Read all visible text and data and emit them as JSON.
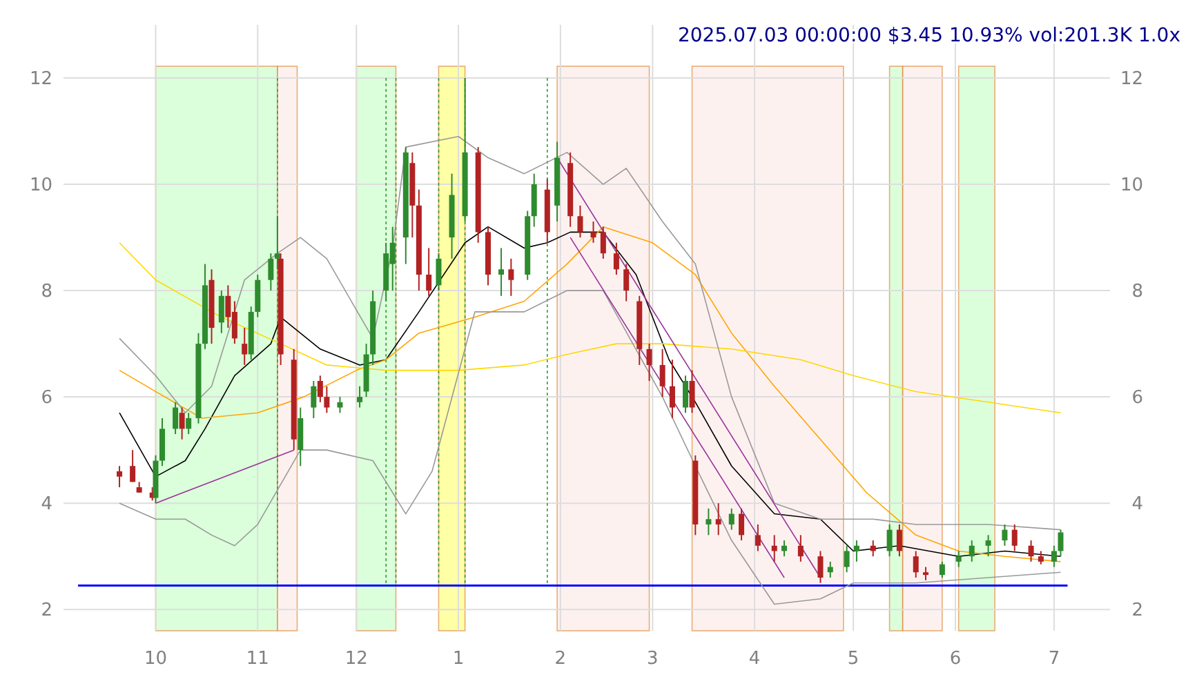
{
  "chart_data": {
    "type": "candlestick",
    "title": "2025.07.03 00:00:00 $3.45 10.93% vol:201.3K 1.0x",
    "x": [
      "2024-09-20",
      "2024-09-24",
      "2024-09-26",
      "2024-09-30",
      "2024-10-01",
      "2024-10-03",
      "2024-10-07",
      "2024-10-09",
      "2024-10-11",
      "2024-10-14",
      "2024-10-16",
      "2024-10-18",
      "2024-10-21",
      "2024-10-23",
      "2024-10-25",
      "2024-10-28",
      "2024-10-30",
      "2024-11-01",
      "2024-11-05",
      "2024-11-07",
      "2024-11-08",
      "2024-11-12",
      "2024-11-14",
      "2024-11-18",
      "2024-11-20",
      "2024-11-22",
      "2024-11-26",
      "2024-12-02",
      "2024-12-04",
      "2024-12-06",
      "2024-12-10",
      "2024-12-12",
      "2024-12-16",
      "2024-12-18",
      "2024-12-20",
      "2024-12-23",
      "2024-12-26",
      "2024-12-30",
      "2025-01-03",
      "2025-01-07",
      "2025-01-10",
      "2025-01-14",
      "2025-01-17",
      "2025-01-22",
      "2025-01-24",
      "2025-01-28",
      "2025-01-31",
      "2025-02-04",
      "2025-02-07",
      "2025-02-11",
      "2025-02-14",
      "2025-02-18",
      "2025-02-21",
      "2025-02-25",
      "2025-02-28",
      "2025-03-04",
      "2025-03-07",
      "2025-03-11",
      "2025-03-13",
      "2025-03-14",
      "2025-03-18",
      "2025-03-21",
      "2025-03-25",
      "2025-03-28",
      "2025-04-02",
      "2025-04-07",
      "2025-04-10",
      "2025-04-15",
      "2025-04-21",
      "2025-04-24",
      "2025-04-29",
      "2025-05-02",
      "2025-05-07",
      "2025-05-12",
      "2025-05-15",
      "2025-05-20",
      "2025-05-23",
      "2025-05-28",
      "2025-06-02",
      "2025-06-06",
      "2025-06-11",
      "2025-06-16",
      "2025-06-19",
      "2025-06-24",
      "2025-06-27",
      "2025-07-01",
      "2025-07-03"
    ],
    "ohlc": [
      [
        4.6,
        4.7,
        4.3,
        4.5
      ],
      [
        4.7,
        5.0,
        4.4,
        4.4
      ],
      [
        4.3,
        4.4,
        4.2,
        4.2
      ],
      [
        4.2,
        4.3,
        4.05,
        4.1
      ],
      [
        4.1,
        4.9,
        4.0,
        4.8
      ],
      [
        4.8,
        5.6,
        4.7,
        5.4
      ],
      [
        5.4,
        5.9,
        5.3,
        5.8
      ],
      [
        5.7,
        5.8,
        5.2,
        5.4
      ],
      [
        5.4,
        5.7,
        5.3,
        5.6
      ],
      [
        5.6,
        7.2,
        5.5,
        7.0
      ],
      [
        7.0,
        8.5,
        6.9,
        8.1
      ],
      [
        8.2,
        8.4,
        7.0,
        7.3
      ],
      [
        7.4,
        8.0,
        7.2,
        7.9
      ],
      [
        7.9,
        8.1,
        7.3,
        7.5
      ],
      [
        7.6,
        7.8,
        7.0,
        7.1
      ],
      [
        7.0,
        7.3,
        6.6,
        6.8
      ],
      [
        6.8,
        7.7,
        6.7,
        7.6
      ],
      [
        7.6,
        8.3,
        7.5,
        8.2
      ],
      [
        8.2,
        8.7,
        8.0,
        8.6
      ],
      [
        8.6,
        9.4,
        8.4,
        8.7
      ],
      [
        8.6,
        8.7,
        6.6,
        6.8
      ],
      [
        6.7,
        6.9,
        5.0,
        5.2
      ],
      [
        5.0,
        5.8,
        4.7,
        5.6
      ],
      [
        5.8,
        6.3,
        5.6,
        6.2
      ],
      [
        6.3,
        6.4,
        5.9,
        6.0
      ],
      [
        6.0,
        6.2,
        5.7,
        5.8
      ],
      [
        5.8,
        6.0,
        5.7,
        5.9
      ],
      [
        5.9,
        6.2,
        5.8,
        6.0
      ],
      [
        6.1,
        7.0,
        6.0,
        6.8
      ],
      [
        6.8,
        8.0,
        6.6,
        7.8
      ],
      [
        8.0,
        8.9,
        7.8,
        8.7
      ],
      [
        8.5,
        9.2,
        8.0,
        8.9
      ],
      [
        9.0,
        10.7,
        8.5,
        10.6
      ],
      [
        10.4,
        10.6,
        9.0,
        9.6
      ],
      [
        9.6,
        9.9,
        8.0,
        8.3
      ],
      [
        8.3,
        8.8,
        7.9,
        8.0
      ],
      [
        8.1,
        8.7,
        8.0,
        8.6
      ],
      [
        9.0,
        10.2,
        8.6,
        9.8
      ],
      [
        9.4,
        12.0,
        9.3,
        10.6
      ],
      [
        10.6,
        10.7,
        8.9,
        9.1
      ],
      [
        9.1,
        9.2,
        8.1,
        8.3
      ],
      [
        8.3,
        8.8,
        7.9,
        8.4
      ],
      [
        8.4,
        8.6,
        7.9,
        8.2
      ],
      [
        8.3,
        9.5,
        8.2,
        9.4
      ],
      [
        9.4,
        10.2,
        9.2,
        10.0
      ],
      [
        9.9,
        10.1,
        8.9,
        9.1
      ],
      [
        9.6,
        10.8,
        9.3,
        10.5
      ],
      [
        10.4,
        10.6,
        9.2,
        9.4
      ],
      [
        9.4,
        9.6,
        9.0,
        9.1
      ],
      [
        9.1,
        9.3,
        8.9,
        9.0
      ],
      [
        9.1,
        9.2,
        8.6,
        8.7
      ],
      [
        8.7,
        8.9,
        8.3,
        8.4
      ],
      [
        8.4,
        8.5,
        7.8,
        8.0
      ],
      [
        7.8,
        7.9,
        6.6,
        6.9
      ],
      [
        6.9,
        7.0,
        6.3,
        6.6
      ],
      [
        6.6,
        6.9,
        6.0,
        6.2
      ],
      [
        6.2,
        6.7,
        5.6,
        5.8
      ],
      [
        5.8,
        6.4,
        5.7,
        6.3
      ],
      [
        6.3,
        6.5,
        5.7,
        5.8
      ],
      [
        4.8,
        4.9,
        3.4,
        3.6
      ],
      [
        3.6,
        3.9,
        3.4,
        3.7
      ],
      [
        3.7,
        4.0,
        3.4,
        3.6
      ],
      [
        3.6,
        3.9,
        3.5,
        3.8
      ],
      [
        3.8,
        3.9,
        3.3,
        3.4
      ],
      [
        3.4,
        3.6,
        3.1,
        3.2
      ],
      [
        3.2,
        3.4,
        2.9,
        3.1
      ],
      [
        3.1,
        3.3,
        3.0,
        3.2
      ],
      [
        3.2,
        3.4,
        2.9,
        3.0
      ],
      [
        3.0,
        3.1,
        2.5,
        2.6
      ],
      [
        2.7,
        2.9,
        2.6,
        2.8
      ],
      [
        2.8,
        3.2,
        2.7,
        3.1
      ],
      [
        3.1,
        3.3,
        2.9,
        3.2
      ],
      [
        3.2,
        3.3,
        3.0,
        3.1
      ],
      [
        3.1,
        3.6,
        3.0,
        3.5
      ],
      [
        3.5,
        3.6,
        3.0,
        3.1
      ],
      [
        3.0,
        3.1,
        2.6,
        2.7
      ],
      [
        2.7,
        2.8,
        2.55,
        2.65
      ],
      [
        2.65,
        2.9,
        2.6,
        2.85
      ],
      [
        2.9,
        3.1,
        2.8,
        3.0
      ],
      [
        3.0,
        3.3,
        2.9,
        3.2
      ],
      [
        3.2,
        3.4,
        3.0,
        3.3
      ],
      [
        3.3,
        3.6,
        3.2,
        3.5
      ],
      [
        3.5,
        3.6,
        3.1,
        3.2
      ],
      [
        3.2,
        3.3,
        2.9,
        3.0
      ],
      [
        3.0,
        3.1,
        2.85,
        2.9
      ],
      [
        2.9,
        3.2,
        2.8,
        3.1
      ],
      [
        3.1,
        3.5,
        3.0,
        3.45
      ]
    ],
    "series": [
      {
        "type": "line",
        "color": "#000000",
        "x": [
          "2024-09-20",
          "2024-10-01",
          "2024-10-10",
          "2024-10-16",
          "2024-10-25",
          "2024-11-05",
          "2024-11-08",
          "2024-11-20",
          "2024-12-02",
          "2024-12-10",
          "2024-12-20",
          "2025-01-03",
          "2025-01-10",
          "2025-01-21",
          "2025-01-28",
          "2025-02-04",
          "2025-02-14",
          "2025-02-24",
          "2025-03-06",
          "2025-03-14",
          "2025-03-25",
          "2025-04-07",
          "2025-04-21",
          "2025-05-01",
          "2025-05-15",
          "2025-06-02",
          "2025-06-16",
          "2025-07-03"
        ],
        "values": [
          5.7,
          4.5,
          4.8,
          5.4,
          6.4,
          7.0,
          7.5,
          6.9,
          6.6,
          6.7,
          7.6,
          8.9,
          9.2,
          8.8,
          8.9,
          9.1,
          9.1,
          8.3,
          6.7,
          5.9,
          4.7,
          3.8,
          3.7,
          3.1,
          3.2,
          3.0,
          3.1,
          3.0
        ]
      },
      {
        "type": "line",
        "color": "#ffa500",
        "x": [
          "2024-09-20",
          "2024-10-01",
          "2024-10-15",
          "2024-11-01",
          "2024-11-15",
          "2024-12-01",
          "2024-12-10",
          "2024-12-20",
          "2025-01-06",
          "2025-01-21",
          "2025-02-03",
          "2025-02-14",
          "2025-03-01",
          "2025-03-14",
          "2025-03-25",
          "2025-04-07",
          "2025-04-21",
          "2025-05-05",
          "2025-05-20",
          "2025-06-02",
          "2025-06-16",
          "2025-07-03"
        ],
        "values": [
          6.5,
          6.1,
          5.6,
          5.7,
          6.0,
          6.5,
          6.7,
          7.2,
          7.5,
          7.8,
          8.5,
          9.2,
          8.9,
          8.3,
          7.2,
          6.2,
          5.2,
          4.2,
          3.4,
          3.1,
          3.0,
          2.9
        ]
      },
      {
        "type": "line",
        "color": "#ffd700",
        "x": [
          "2024-09-20",
          "2024-10-01",
          "2024-10-21",
          "2024-11-08",
          "2024-11-22",
          "2024-12-10",
          "2025-01-01",
          "2025-01-21",
          "2025-02-03",
          "2025-02-18",
          "2025-03-04",
          "2025-03-25",
          "2025-04-15",
          "2025-05-01",
          "2025-05-20",
          "2025-06-11",
          "2025-07-03"
        ],
        "values": [
          8.9,
          8.2,
          7.5,
          7.0,
          6.6,
          6.5,
          6.5,
          6.6,
          6.8,
          7.0,
          7.0,
          6.9,
          6.7,
          6.4,
          6.1,
          5.9,
          5.7
        ]
      },
      {
        "type": "line",
        "color": "#999999",
        "x": [
          "2024-09-20",
          "2024-10-01",
          "2024-10-10",
          "2024-10-18",
          "2024-10-28",
          "2024-11-07",
          "2024-11-14",
          "2024-11-22",
          "2024-12-06",
          "2024-12-12",
          "2024-12-16",
          "2025-01-01",
          "2025-01-10",
          "2025-01-21",
          "2025-02-03",
          "2025-02-14",
          "2025-02-21",
          "2025-03-04",
          "2025-03-14",
          "2025-03-25",
          "2025-04-07",
          "2025-04-21",
          "2025-05-07",
          "2025-05-20",
          "2025-06-11",
          "2025-07-03"
        ],
        "values": [
          7.1,
          6.4,
          5.7,
          6.2,
          8.2,
          8.7,
          9.0,
          8.6,
          7.1,
          8.8,
          10.7,
          10.9,
          10.5,
          10.2,
          10.6,
          10.0,
          10.3,
          9.3,
          8.5,
          6.0,
          4.0,
          3.7,
          3.7,
          3.6,
          3.6,
          3.5
        ]
      },
      {
        "type": "line",
        "color": "#999999",
        "x": [
          "2024-09-20",
          "2024-10-01",
          "2024-10-10",
          "2024-10-18",
          "2024-10-25",
          "2024-11-01",
          "2024-11-14",
          "2024-11-22",
          "2024-12-06",
          "2024-12-16",
          "2024-12-24",
          "2025-01-06",
          "2025-01-21",
          "2025-02-03",
          "2025-02-14",
          "2025-03-04",
          "2025-03-14",
          "2025-03-25",
          "2025-04-07",
          "2025-04-21",
          "2025-05-01",
          "2025-05-20",
          "2025-06-11",
          "2025-07-03"
        ],
        "values": [
          4.0,
          3.7,
          3.7,
          3.4,
          3.2,
          3.6,
          5.0,
          5.0,
          4.8,
          3.8,
          4.6,
          7.6,
          7.6,
          8.0,
          8.0,
          6.0,
          4.7,
          3.3,
          2.1,
          2.2,
          2.5,
          2.5,
          2.6,
          2.7
        ]
      },
      {
        "type": "line",
        "color": "#993399",
        "x": [
          "2024-10-01",
          "2024-11-12"
        ],
        "values": [
          4.0,
          5.0
        ]
      },
      {
        "type": "line",
        "color": "#993399",
        "x": [
          "2025-01-31",
          "2025-04-21"
        ],
        "values": [
          10.5,
          2.6
        ]
      },
      {
        "type": "line",
        "color": "#993399",
        "x": [
          "2025-02-04",
          "2025-04-10"
        ],
        "values": [
          9.0,
          2.6
        ]
      }
    ],
    "bands": [
      {
        "axis": "x",
        "from": "2024-10-01",
        "to": "2024-11-07",
        "color": "#ccffcc"
      },
      {
        "axis": "x",
        "from": "2024-11-07",
        "to": "2024-11-13",
        "color": "#fdecea"
      },
      {
        "axis": "x",
        "from": "2024-12-01",
        "to": "2024-12-13",
        "color": "#ccffcc"
      },
      {
        "axis": "x",
        "from": "2024-12-26",
        "to": "2025-01-03",
        "color": "#ffff80"
      },
      {
        "axis": "x",
        "from": "2025-01-31",
        "to": "2025-02-28",
        "color": "#fdecea"
      },
      {
        "axis": "x",
        "from": "2025-03-13",
        "to": "2025-04-28",
        "color": "#fdecea"
      },
      {
        "axis": "x",
        "from": "2025-05-12",
        "to": "2025-05-16",
        "color": "#ccffcc"
      },
      {
        "axis": "x",
        "from": "2025-05-16",
        "to": "2025-05-28",
        "color": "#fdecea"
      },
      {
        "axis": "x",
        "from": "2025-06-02",
        "to": "2025-06-13",
        "color": "#ccffcc"
      }
    ],
    "ref_lines": [
      {
        "axis": "y",
        "value": 2.45,
        "color": "#0000ff",
        "line_style": "solid"
      },
      {
        "axis": "x",
        "value": "2024-11-07",
        "color": "#339933",
        "line_style": "dotted"
      },
      {
        "axis": "x",
        "value": "2024-12-10",
        "color": "#339933",
        "line_style": "dotted"
      },
      {
        "axis": "x",
        "value": "2024-12-13",
        "color": "#339933",
        "line_style": "dotted"
      },
      {
        "axis": "x",
        "value": "2024-12-26",
        "color": "#339933",
        "line_style": "dotted"
      },
      {
        "axis": "x",
        "value": "2025-01-03",
        "color": "#339933",
        "line_style": "dotted"
      },
      {
        "axis": "x",
        "value": "2025-01-28",
        "color": "#339933",
        "line_style": "dotted"
      }
    ],
    "xlim": [
      "2024-09-03",
      "2025-07-18"
    ],
    "xticks": [
      {
        "value": "2024-10-01",
        "label": "10"
      },
      {
        "value": "2024-11-01",
        "label": "11"
      },
      {
        "value": "2024-12-01",
        "label": "12"
      },
      {
        "value": "2025-01-01",
        "label": "1"
      },
      {
        "value": "2025-02-01",
        "label": "2"
      },
      {
        "value": "2025-03-01",
        "label": "3"
      },
      {
        "value": "2025-04-01",
        "label": "4"
      },
      {
        "value": "2025-05-01",
        "label": "5"
      },
      {
        "value": "2025-06-01",
        "label": "6"
      },
      {
        "value": "2025-07-01",
        "label": "7"
      }
    ],
    "ylim": [
      1.6,
      13
    ],
    "yticks": [
      2,
      4,
      6,
      8,
      10,
      12
    ],
    "y2lim": [
      1.6,
      13
    ],
    "y2ticks": [
      2,
      4,
      6,
      8,
      10,
      12
    ],
    "grid": true
  }
}
